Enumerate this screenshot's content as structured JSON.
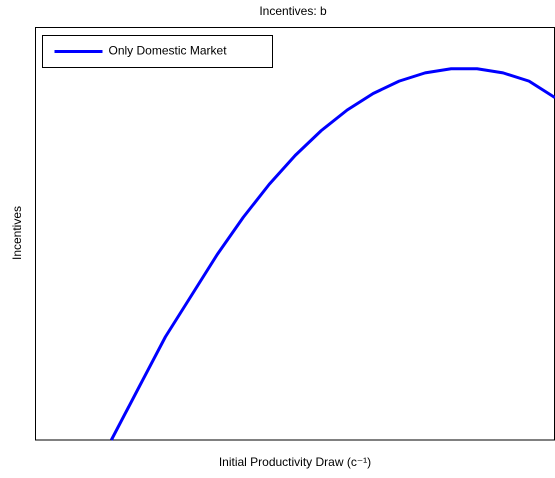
{
  "chart_data": {
    "type": "line",
    "title": "Incentives: b",
    "xlabel": "Initial Productivity Draw (c⁻¹)",
    "ylabel": "Incentives",
    "x": [
      0.146,
      0.2,
      0.25,
      0.3,
      0.35,
      0.4,
      0.45,
      0.5,
      0.55,
      0.6,
      0.65,
      0.7,
      0.75,
      0.8,
      0.85,
      0.9,
      0.95,
      1.0
    ],
    "series": [
      {
        "name": "Only Domestic Market",
        "color": "#0000ff",
        "values": [
          0,
          0.13,
          0.25,
          0.35,
          0.45,
          0.54,
          0.62,
          0.69,
          0.75,
          0.8,
          0.84,
          0.87,
          0.89,
          0.9,
          0.9,
          0.89,
          0.87,
          0.83
        ]
      }
    ],
    "xlim": [
      0,
      1
    ],
    "ylim": [
      0,
      1
    ],
    "legend": "upper left"
  }
}
